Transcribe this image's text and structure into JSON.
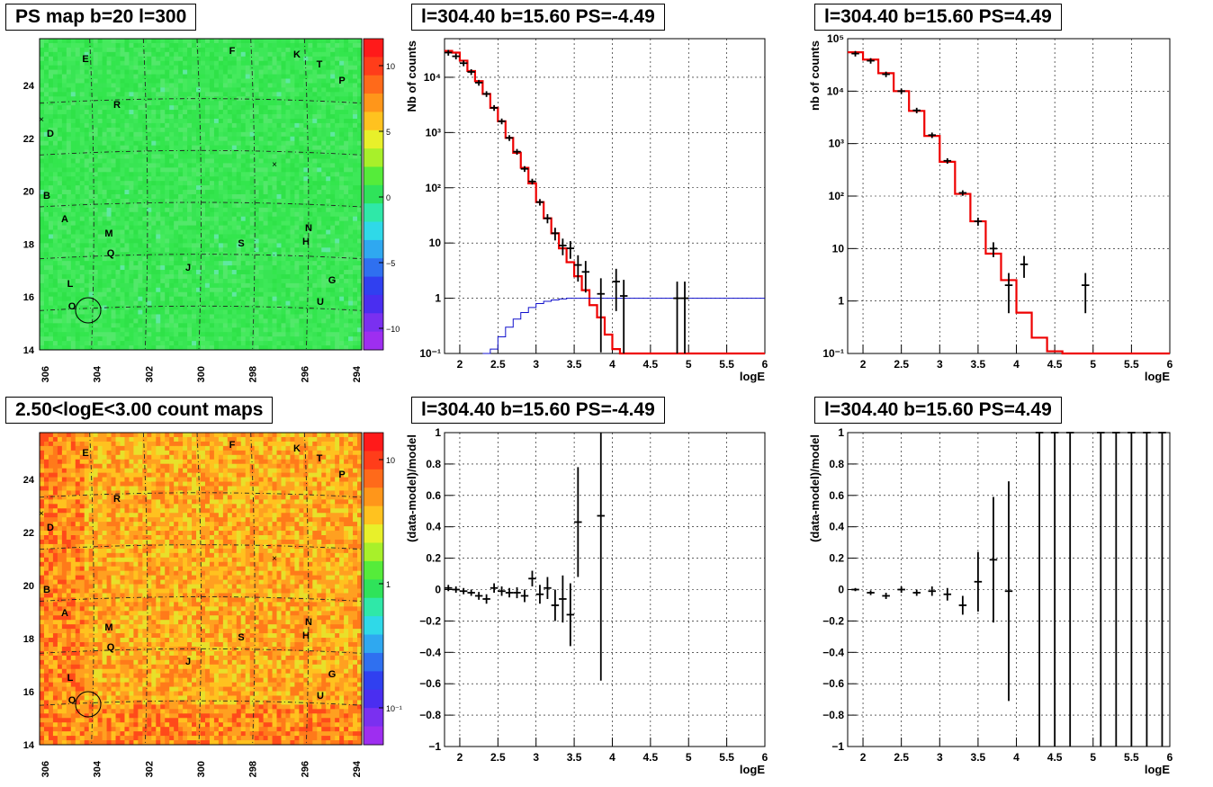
{
  "panels": {
    "map_top": {
      "title": "PS map b=20 l=300"
    },
    "map_bottom": {
      "title": "2.50<logE<3.00 count maps"
    },
    "spec_left": {
      "title": "l=304.40 b=15.60 PS=-4.49"
    },
    "spec_right": {
      "title": "l=304.40 b=15.60 PS=4.49"
    },
    "res_left": {
      "title": "l=304.40 b=15.60 PS=-4.49"
    },
    "res_right": {
      "title": "l=304.40 b=15.60 PS=4.49"
    }
  },
  "map_axes": {
    "x_ticks": [
      "306",
      "304",
      "302",
      "300",
      "298",
      "296",
      "294"
    ],
    "y_ticks": [
      "24",
      "22",
      "20",
      "18",
      "16",
      "14"
    ],
    "source_labels": [
      "E",
      "F",
      "K",
      "T",
      "P",
      "R",
      "D",
      "B",
      "A",
      "M",
      "Q",
      "N",
      "H",
      "S",
      "J",
      "L",
      "G",
      "U",
      "O"
    ]
  },
  "colorbars": {
    "top": {
      "labels": [
        "10",
        "5",
        "0",
        "−5",
        "−10"
      ]
    },
    "bottom": {
      "labels": [
        "10",
        "1",
        "10⁻¹"
      ]
    }
  },
  "chart_data": [
    {
      "type": "histogram",
      "panel": "spec_left",
      "title": "l=304.40 b=15.60 PS=-4.49",
      "xlabel": "logE",
      "ylabel": "Nb of counts",
      "xlim": [
        1.8,
        6.0
      ],
      "ylim": [
        0.1,
        50000
      ],
      "yscale": "log",
      "x_ticks": [
        "2",
        "2.5",
        "3",
        "3.5",
        "4",
        "4.5",
        "5",
        "5.5",
        "6"
      ],
      "y_ticks": [
        "10⁻¹",
        "1",
        "10",
        "10²",
        "10³",
        "10⁴"
      ],
      "grid": true,
      "model_edges": [
        1.8,
        1.9,
        2.0,
        2.1,
        2.2,
        2.3,
        2.4,
        2.5,
        2.6,
        2.7,
        2.8,
        2.9,
        3.0,
        3.1,
        3.2,
        3.3,
        3.4,
        3.5,
        3.6,
        3.7,
        3.8,
        3.9,
        4.0,
        4.1,
        4.2,
        4.3,
        4.4,
        6.0
      ],
      "model_values": [
        30000,
        28000,
        20000,
        13000,
        8500,
        5000,
        2800,
        1600,
        800,
        430,
        230,
        120,
        55,
        28,
        15,
        8,
        4.5,
        2.5,
        1.4,
        0.75,
        0.45,
        0.22,
        0.12,
        0.1,
        0.1,
        0.1,
        0.1
      ],
      "background_x": [
        2.3,
        2.4,
        2.5,
        2.6,
        2.7,
        2.8,
        2.9,
        3.0,
        3.1,
        3.2,
        3.3,
        3.4,
        3.5,
        6.0
      ],
      "background_values": [
        0.1,
        0.12,
        0.2,
        0.3,
        0.42,
        0.55,
        0.68,
        0.8,
        0.88,
        0.93,
        0.97,
        1.0,
        1.0,
        1.0
      ],
      "data_points": [
        {
          "x": 1.85,
          "y": 28000
        },
        {
          "x": 1.95,
          "y": 24000
        },
        {
          "x": 2.05,
          "y": 18000
        },
        {
          "x": 2.15,
          "y": 12500
        },
        {
          "x": 2.25,
          "y": 8000
        },
        {
          "x": 2.35,
          "y": 5000
        },
        {
          "x": 2.45,
          "y": 2800
        },
        {
          "x": 2.55,
          "y": 1600
        },
        {
          "x": 2.65,
          "y": 800
        },
        {
          "x": 2.75,
          "y": 450
        },
        {
          "x": 2.85,
          "y": 220
        },
        {
          "x": 2.95,
          "y": 130
        },
        {
          "x": 3.05,
          "y": 55
        },
        {
          "x": 3.15,
          "y": 28
        },
        {
          "x": 3.25,
          "y": 15
        },
        {
          "x": 3.35,
          "y": 9
        },
        {
          "x": 3.45,
          "y": 8
        },
        {
          "x": 3.55,
          "y": 4
        },
        {
          "x": 3.65,
          "y": 3
        },
        {
          "x": 3.85,
          "y": 1.2
        },
        {
          "x": 4.05,
          "y": 2
        },
        {
          "x": 4.15,
          "y": 1.1
        },
        {
          "x": 4.85,
          "y": 1
        },
        {
          "x": 4.95,
          "y": 1
        }
      ]
    },
    {
      "type": "histogram",
      "panel": "spec_right",
      "title": "l=304.40 b=15.60 PS=4.49",
      "xlabel": "logE",
      "ylabel": "nb of counts",
      "xlim": [
        1.8,
        6.0
      ],
      "ylim": [
        0.1,
        100000
      ],
      "yscale": "log",
      "x_ticks": [
        "2",
        "2.5",
        "3",
        "3.5",
        "4",
        "4.5",
        "5",
        "5.5",
        "6"
      ],
      "y_ticks": [
        "10⁻¹",
        "1",
        "10",
        "10²",
        "10³",
        "10⁴",
        "10⁵"
      ],
      "grid": true,
      "model_edges": [
        1.8,
        2.0,
        2.2,
        2.4,
        2.6,
        2.8,
        3.0,
        3.2,
        3.4,
        3.6,
        3.8,
        4.0,
        4.2,
        4.4,
        4.6,
        6.0
      ],
      "model_values": [
        55000,
        40000,
        22000,
        10000,
        4200,
        1400,
        450,
        110,
        33,
        8,
        2.5,
        0.6,
        0.2,
        0.11,
        0.1
      ],
      "data_points": [
        {
          "x": 1.9,
          "y": 52000
        },
        {
          "x": 2.1,
          "y": 38000
        },
        {
          "x": 2.3,
          "y": 21000
        },
        {
          "x": 2.5,
          "y": 10000
        },
        {
          "x": 2.7,
          "y": 4300
        },
        {
          "x": 2.9,
          "y": 1450
        },
        {
          "x": 3.1,
          "y": 470
        },
        {
          "x": 3.3,
          "y": 115
        },
        {
          "x": 3.5,
          "y": 33
        },
        {
          "x": 3.7,
          "y": 10
        },
        {
          "x": 3.9,
          "y": 2
        },
        {
          "x": 4.1,
          "y": 5
        },
        {
          "x": 4.9,
          "y": 2
        }
      ]
    },
    {
      "type": "scatter",
      "panel": "res_left",
      "title": "l=304.40 b=15.60 PS=-4.49",
      "xlabel": "logE",
      "ylabel": "(data-model)/model",
      "xlim": [
        1.8,
        6.0
      ],
      "ylim": [
        -1,
        1
      ],
      "x_ticks": [
        "2",
        "2.5",
        "3",
        "3.5",
        "4",
        "4.5",
        "5",
        "5.5",
        "6"
      ],
      "y_ticks": [
        "−1",
        "−0.8",
        "−0.6",
        "−0.4",
        "−0.2",
        "0",
        "0.2",
        "0.4",
        "0.6",
        "0.8",
        "1"
      ],
      "grid": true,
      "points": [
        {
          "x": 1.85,
          "y": 0.01,
          "err": 0.02
        },
        {
          "x": 1.95,
          "y": 0.0,
          "err": 0.02
        },
        {
          "x": 2.05,
          "y": -0.01,
          "err": 0.02
        },
        {
          "x": 2.15,
          "y": -0.02,
          "err": 0.02
        },
        {
          "x": 2.25,
          "y": -0.04,
          "err": 0.025
        },
        {
          "x": 2.35,
          "y": -0.06,
          "err": 0.03
        },
        {
          "x": 2.45,
          "y": 0.01,
          "err": 0.03
        },
        {
          "x": 2.55,
          "y": -0.01,
          "err": 0.03
        },
        {
          "x": 2.65,
          "y": -0.02,
          "err": 0.03
        },
        {
          "x": 2.75,
          "y": -0.02,
          "err": 0.035
        },
        {
          "x": 2.85,
          "y": -0.04,
          "err": 0.04
        },
        {
          "x": 2.95,
          "y": 0.07,
          "err": 0.05
        },
        {
          "x": 3.05,
          "y": -0.03,
          "err": 0.06
        },
        {
          "x": 3.15,
          "y": 0.01,
          "err": 0.07
        },
        {
          "x": 3.25,
          "y": -0.1,
          "err": 0.1
        },
        {
          "x": 3.35,
          "y": -0.06,
          "err": 0.15
        },
        {
          "x": 3.45,
          "y": -0.16,
          "err": 0.2
        },
        {
          "x": 3.55,
          "y": 0.43,
          "err": 0.35
        },
        {
          "x": 3.85,
          "y": 0.47,
          "err": 1.05
        }
      ]
    },
    {
      "type": "scatter",
      "panel": "res_right",
      "title": "l=304.40 b=15.60 PS=4.49",
      "xlabel": "logE",
      "ylabel": "(data-model)/model",
      "xlim": [
        1.8,
        6.0
      ],
      "ylim": [
        -1,
        1
      ],
      "x_ticks": [
        "2",
        "2.5",
        "3",
        "3.5",
        "4",
        "4.5",
        "5",
        "5.5",
        "6"
      ],
      "y_ticks": [
        "−1",
        "−0.8",
        "−0.6",
        "−0.4",
        "−0.2",
        "0",
        "0.2",
        "0.4",
        "0.6",
        "0.8",
        "1"
      ],
      "grid": true,
      "points": [
        {
          "x": 1.9,
          "y": 0.0,
          "err": 0.01
        },
        {
          "x": 2.1,
          "y": -0.02,
          "err": 0.015
        },
        {
          "x": 2.3,
          "y": -0.04,
          "err": 0.02
        },
        {
          "x": 2.5,
          "y": 0.0,
          "err": 0.02
        },
        {
          "x": 2.7,
          "y": -0.02,
          "err": 0.02
        },
        {
          "x": 2.9,
          "y": -0.01,
          "err": 0.03
        },
        {
          "x": 3.1,
          "y": -0.03,
          "err": 0.04
        },
        {
          "x": 3.3,
          "y": -0.1,
          "err": 0.06
        },
        {
          "x": 3.5,
          "y": 0.05,
          "err": 0.19
        },
        {
          "x": 3.7,
          "y": 0.19,
          "err": 0.4
        },
        {
          "x": 3.9,
          "y": -0.01,
          "err": 0.7
        },
        {
          "x": 4.3,
          "y": 1,
          "err": 2
        },
        {
          "x": 4.5,
          "y": 1,
          "err": 2
        },
        {
          "x": 4.7,
          "y": 1,
          "err": 2
        },
        {
          "x": 5.1,
          "y": 1,
          "err": 2
        },
        {
          "x": 5.3,
          "y": 1,
          "err": 2
        },
        {
          "x": 5.5,
          "y": 1,
          "err": 2
        },
        {
          "x": 5.7,
          "y": 1,
          "err": 2
        },
        {
          "x": 5.9,
          "y": 1,
          "err": 2
        }
      ]
    }
  ]
}
